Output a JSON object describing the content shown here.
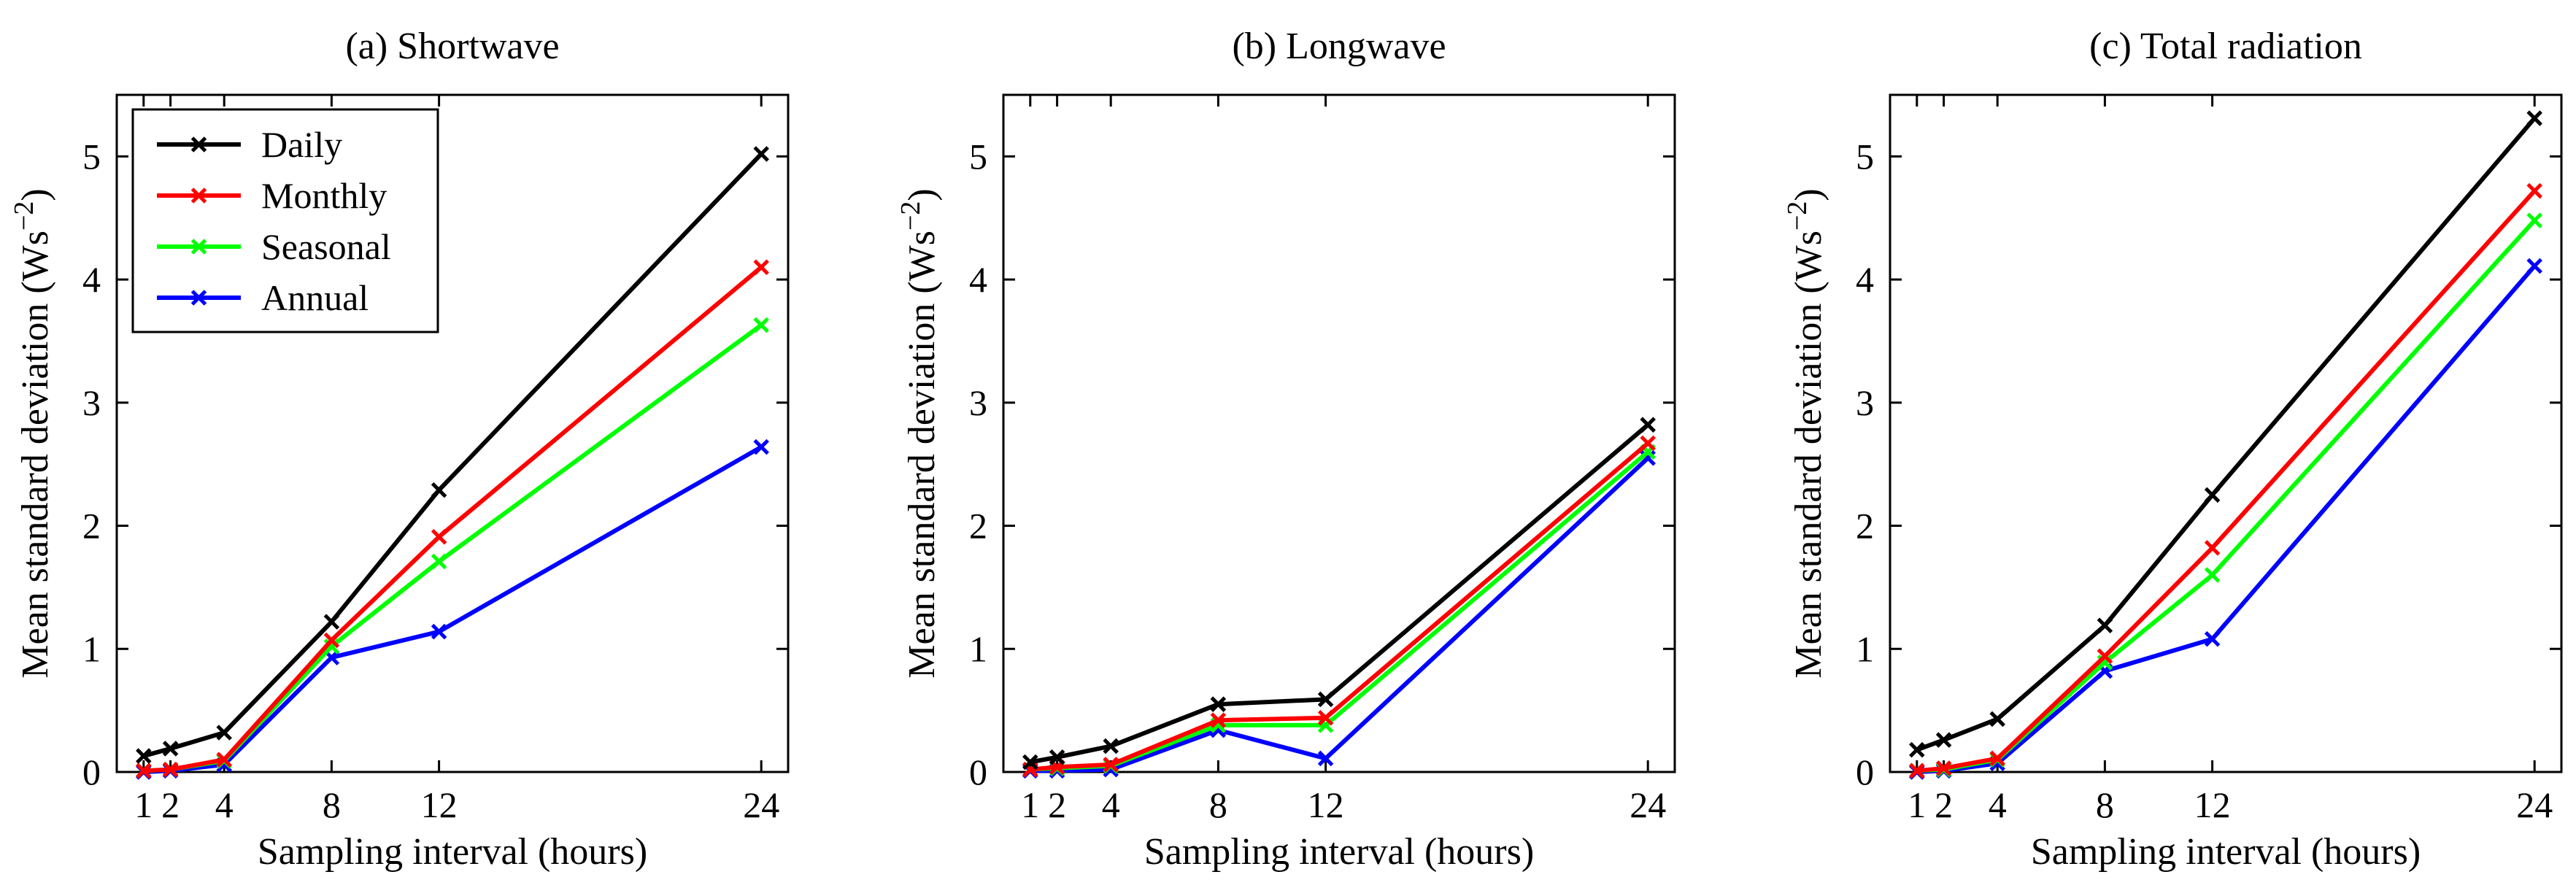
{
  "chart_data": [
    {
      "type": "line",
      "title": "(a) Shortwave",
      "xlabel": "Sampling interval (hours)",
      "ylabel": "Mean standard deviation (Ws",
      "ylabel_exponent": "−2",
      "ylabel_close": ")",
      "x": [
        1,
        2,
        4,
        8,
        12,
        24
      ],
      "xticks": [
        1,
        2,
        4,
        8,
        12,
        24
      ],
      "xlim": [
        0,
        25
      ],
      "ylim": [
        0,
        5.5
      ],
      "yticks": [
        0,
        1,
        2,
        3,
        4,
        5
      ],
      "legend": "top-left",
      "series": [
        {
          "name": "Daily",
          "color": "#000000",
          "values": [
            0.13,
            0.19,
            0.32,
            1.22,
            2.29,
            5.02
          ]
        },
        {
          "name": "Monthly",
          "color": "#ff0000",
          "values": [
            0.01,
            0.02,
            0.1,
            1.07,
            1.91,
            4.1
          ]
        },
        {
          "name": "Seasonal",
          "color": "#00ff00",
          "values": [
            0.01,
            0.02,
            0.09,
            1.02,
            1.71,
            3.63
          ]
        },
        {
          "name": "Annual",
          "color": "#0000ff",
          "values": [
            0.0,
            0.01,
            0.06,
            0.93,
            1.14,
            2.64
          ]
        }
      ]
    },
    {
      "type": "line",
      "title": "(b) Longwave",
      "xlabel": "Sampling interval (hours)",
      "ylabel": "Mean standard deviation (Ws",
      "ylabel_exponent": "−2",
      "ylabel_close": ")",
      "x": [
        1,
        2,
        4,
        8,
        12,
        24
      ],
      "xticks": [
        1,
        2,
        4,
        8,
        12,
        24
      ],
      "xlim": [
        0,
        25
      ],
      "ylim": [
        0,
        5.5
      ],
      "yticks": [
        0,
        1,
        2,
        3,
        4,
        5
      ],
      "legend": "",
      "series": [
        {
          "name": "Daily",
          "color": "#000000",
          "values": [
            0.08,
            0.12,
            0.21,
            0.55,
            0.59,
            2.82
          ]
        },
        {
          "name": "Monthly",
          "color": "#ff0000",
          "values": [
            0.02,
            0.04,
            0.06,
            0.42,
            0.44,
            2.67
          ]
        },
        {
          "name": "Seasonal",
          "color": "#00ff00",
          "values": [
            0.02,
            0.03,
            0.05,
            0.38,
            0.38,
            2.6
          ]
        },
        {
          "name": "Annual",
          "color": "#0000ff",
          "values": [
            0.01,
            0.01,
            0.02,
            0.34,
            0.11,
            2.55
          ]
        }
      ]
    },
    {
      "type": "line",
      "title": "(c) Total radiation",
      "xlabel": "Sampling interval (hours)",
      "ylabel": "Mean standard deviation (Ws",
      "ylabel_exponent": "−2",
      "ylabel_close": ")",
      "x": [
        1,
        2,
        4,
        8,
        12,
        24
      ],
      "xticks": [
        1,
        2,
        4,
        8,
        12,
        24
      ],
      "xlim": [
        0,
        25
      ],
      "ylim": [
        0,
        5.5
      ],
      "yticks": [
        0,
        1,
        2,
        3,
        4,
        5
      ],
      "legend": "",
      "series": [
        {
          "name": "Daily",
          "color": "#000000",
          "values": [
            0.18,
            0.26,
            0.43,
            1.19,
            2.25,
            5.31
          ]
        },
        {
          "name": "Monthly",
          "color": "#ff0000",
          "values": [
            0.01,
            0.03,
            0.11,
            0.94,
            1.82,
            4.72
          ]
        },
        {
          "name": "Seasonal",
          "color": "#00ff00",
          "values": [
            0.01,
            0.02,
            0.1,
            0.89,
            1.6,
            4.48
          ]
        },
        {
          "name": "Annual",
          "color": "#0000ff",
          "values": [
            0.0,
            0.01,
            0.07,
            0.82,
            1.08,
            4.11
          ]
        }
      ]
    }
  ]
}
